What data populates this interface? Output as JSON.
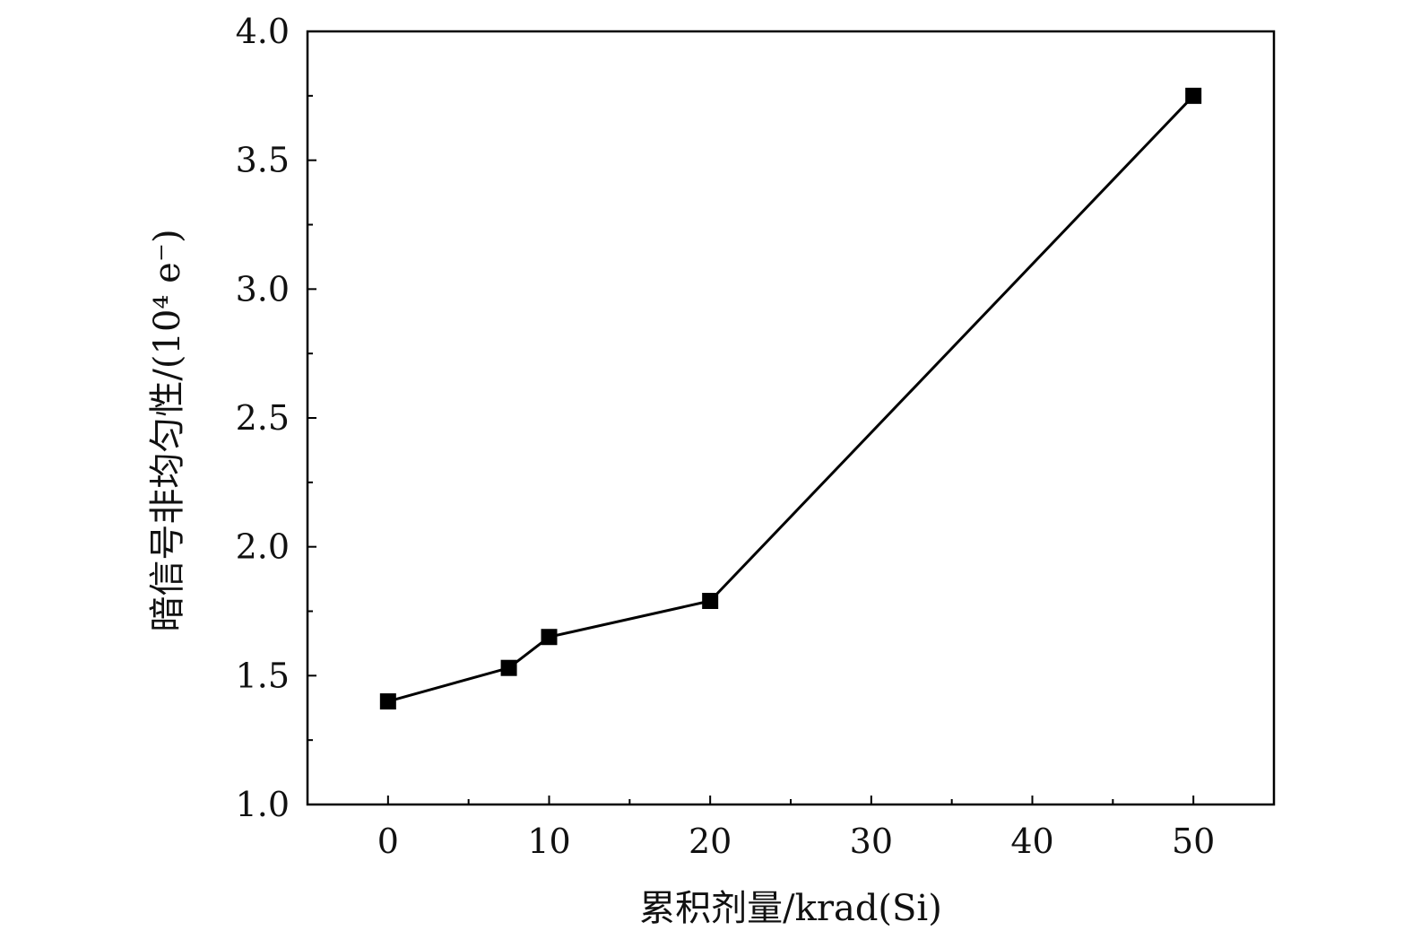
{
  "chart_data": {
    "type": "line",
    "title": "",
    "xlabel": "累积剂量/krad(Si)",
    "ylabel": "暗信号非均匀性/(10⁴ e⁻)",
    "xlim": [
      -5,
      55
    ],
    "ylim": [
      1.0,
      4.0
    ],
    "x_ticks": [
      0,
      10,
      20,
      30,
      40,
      50
    ],
    "x_tick_labels": [
      "0",
      "10",
      "20",
      "30",
      "40",
      "50"
    ],
    "x_minor_ticks": [
      5,
      15,
      25,
      35,
      45
    ],
    "y_ticks": [
      1.0,
      1.5,
      2.0,
      2.5,
      3.0,
      3.5,
      4.0
    ],
    "y_tick_labels": [
      "1.0",
      "1.5",
      "2.0",
      "2.5",
      "3.0",
      "3.5",
      "4.0"
    ],
    "y_minor_ticks": [
      1.25,
      1.75,
      2.25,
      2.75,
      3.25,
      3.75
    ],
    "grid": false,
    "legend": false,
    "series": [
      {
        "marker": "square",
        "color": "#000000",
        "x": [
          0,
          7.5,
          10,
          20,
          50
        ],
        "y": [
          1.4,
          1.53,
          1.65,
          1.79,
          3.75
        ]
      }
    ]
  }
}
